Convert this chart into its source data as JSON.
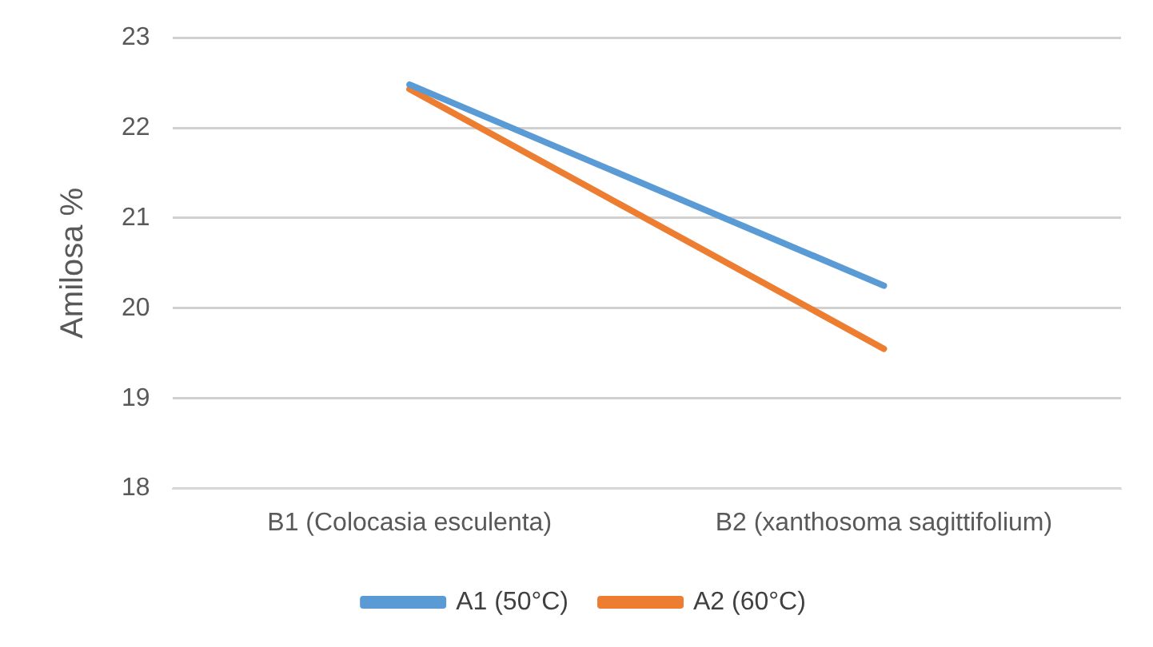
{
  "chart_data": {
    "type": "line",
    "ylabel": "Amilosa %",
    "categories": [
      "B1 (Colocasia esculenta)",
      "B2 (xanthosoma sagittifolium)"
    ],
    "series": [
      {
        "name": "A1 (50°C)",
        "color": "#5b9bd5",
        "values": [
          22.48,
          20.25
        ]
      },
      {
        "name": "A2 (60°C)",
        "color": "#ed7d31",
        "values": [
          22.43,
          19.55
        ]
      }
    ],
    "ylim": [
      18,
      23
    ],
    "yticks": [
      18,
      19,
      20,
      21,
      22,
      23
    ],
    "grid": "y",
    "legend": "bottom",
    "marker": "none",
    "line_style": "solid"
  }
}
